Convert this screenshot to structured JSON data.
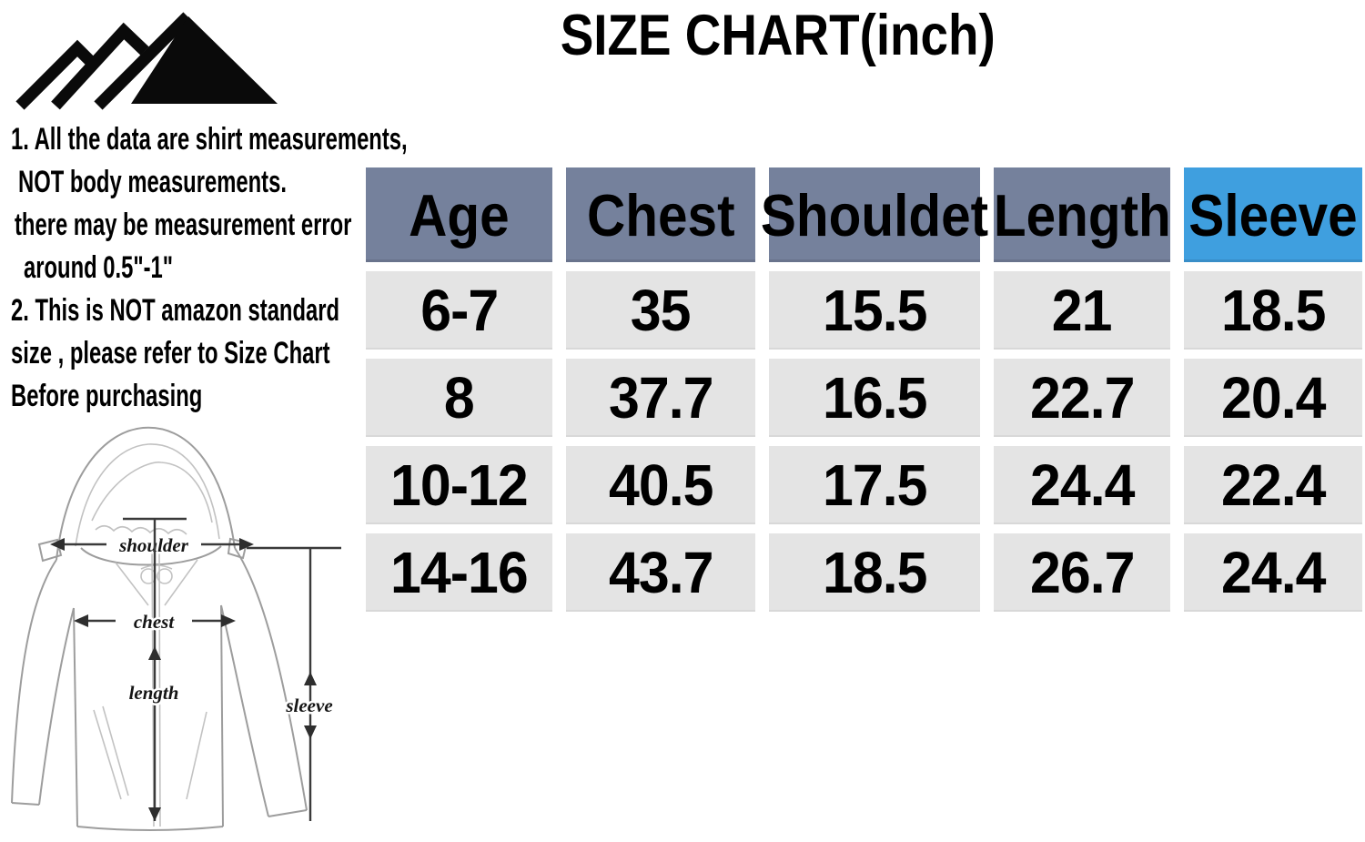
{
  "title": "SIZE CHART(inch)",
  "logo": {
    "name": "mountain-logo"
  },
  "notes": {
    "lines": [
      "1. All the data are shirt measurements,",
      "NOT body measurements.",
      "there may be measurement error",
      "around 0.5\"-1\"",
      "2. This is NOT amazon standard",
      "size , please refer to Size Chart",
      "Before purchasing"
    ]
  },
  "chart_data": {
    "type": "table",
    "title": "SIZE CHART(inch)",
    "columns": [
      "Age",
      "Chest",
      "Shouldet",
      "Length",
      "Sleeve"
    ],
    "rows": [
      [
        "6-7",
        "35",
        "15.5",
        "21",
        "18.5"
      ],
      [
        "8",
        "37.7",
        "16.5",
        "22.7",
        "20.4"
      ],
      [
        "10-12",
        "40.5",
        "17.5",
        "24.4",
        "22.4"
      ],
      [
        "14-16",
        "43.7",
        "18.5",
        "26.7",
        "24.4"
      ]
    ],
    "header_highlight_column": "Sleeve",
    "units": "inch"
  },
  "diagram": {
    "labels": {
      "shoulder": "shoulder",
      "chest": "chest",
      "length": "length",
      "sleeve": "sleeve"
    }
  },
  "colors": {
    "header_bg": "#75819c",
    "header_accent_bg": "#3f9fdf",
    "cell_bg": "#e4e4e4",
    "text": "#000000"
  }
}
